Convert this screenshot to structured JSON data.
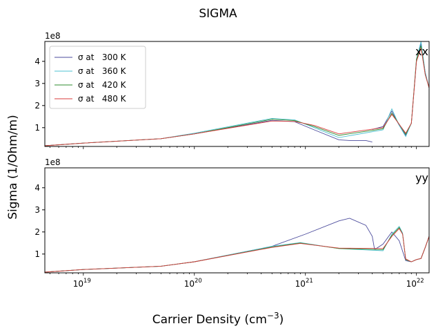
{
  "figure": {
    "title": "SIGMA",
    "xlabel": "Carrier Density (cm",
    "xlabel_sup": "−3",
    "xlabel_close": ")",
    "ylabel": "Sigma (1/Ohm/m)"
  },
  "chart_data": [
    {
      "type": "line",
      "panel": "xx",
      "corner_label": "xx",
      "offset_text": "1e8",
      "x_scale": "log",
      "xlim": [
        4.5e+18,
        1.3e+22
      ],
      "ylim": [
        0.15,
        4.9
      ],
      "yticks": [
        1,
        2,
        3,
        4
      ],
      "ytick_labels": [
        "1",
        "2",
        "3",
        "4"
      ],
      "legend": {
        "placement": "top-left"
      },
      "series": [
        {
          "name": "σ at   300 K",
          "color": "#4b4b9c",
          "x": [
            4.5e+18,
            1e+19,
            5e+19,
            1e+20,
            5e+20,
            8e+20,
            1.2e+21,
            2e+21,
            2.5e+21,
            3.5e+21,
            4e+21
          ],
          "y": [
            0.18,
            0.3,
            0.5,
            0.72,
            1.33,
            1.27,
            0.9,
            0.45,
            0.42,
            0.42,
            0.35
          ]
        },
        {
          "name": "σ at   300 K",
          "color": "#4b4b9c",
          "x": [
            4e+21,
            5e+21,
            6e+21,
            7e+21,
            8e+21,
            9e+21,
            1e+22,
            1.1e+22,
            1.2e+22,
            1.3e+22
          ],
          "y": [
            0.92,
            1.05,
            1.75,
            1.1,
            0.65,
            1.2,
            4.0,
            4.8,
            3.5,
            2.8
          ]
        },
        {
          "name": "σ at   360 K",
          "color": "#4ec0d0",
          "x": [
            4.5e+18,
            1e+19,
            5e+19,
            1e+20,
            5e+20,
            8e+20,
            1.2e+21,
            2e+21,
            5e+21,
            6e+21,
            7e+21,
            8e+21,
            9e+21,
            1e+22,
            1.1e+22,
            1.2e+22,
            1.3e+22
          ],
          "y": [
            0.18,
            0.3,
            0.5,
            0.75,
            1.42,
            1.35,
            1.0,
            0.55,
            0.9,
            1.85,
            1.1,
            0.6,
            1.2,
            4.1,
            4.9,
            3.5,
            2.8
          ]
        },
        {
          "name": "σ at   420 K",
          "color": "#2e8b2e",
          "x": [
            4.5e+18,
            1e+19,
            5e+19,
            1e+20,
            5e+20,
            8e+20,
            1.2e+21,
            2e+21,
            5e+21,
            6e+21,
            7e+21,
            8e+21,
            9e+21,
            1e+22,
            1.1e+22,
            1.2e+22,
            1.3e+22
          ],
          "y": [
            0.18,
            0.3,
            0.5,
            0.72,
            1.38,
            1.32,
            1.05,
            0.65,
            0.95,
            1.65,
            1.15,
            0.7,
            1.2,
            4.1,
            4.7,
            3.4,
            2.8
          ]
        },
        {
          "name": "σ at   480 K",
          "color": "#d83a3a",
          "x": [
            4.5e+18,
            1e+19,
            5e+19,
            1e+20,
            5e+20,
            8e+20,
            1.2e+21,
            2e+21,
            5e+21,
            6e+21,
            7e+21,
            8e+21,
            9e+21,
            1e+22,
            1.1e+22,
            1.2e+22,
            1.3e+22
          ],
          "y": [
            0.18,
            0.3,
            0.5,
            0.72,
            1.3,
            1.28,
            1.1,
            0.72,
            1.0,
            1.6,
            1.15,
            0.75,
            1.2,
            4.0,
            4.6,
            3.4,
            2.8
          ]
        }
      ]
    },
    {
      "type": "line",
      "panel": "yy",
      "corner_label": "yy",
      "offset_text": "1e8",
      "x_scale": "log",
      "xlim": [
        4.5e+18,
        1.3e+22
      ],
      "ylim": [
        0.15,
        4.9
      ],
      "xticks": [
        1e+19,
        1e+20,
        1e+21,
        1e+22
      ],
      "xtick_labels": [
        "10",
        "10",
        "10",
        "10"
      ],
      "xtick_exponents": [
        "19",
        "20",
        "21",
        "22"
      ],
      "yticks": [
        1,
        2,
        3,
        4
      ],
      "ytick_labels": [
        "1",
        "2",
        "3",
        "4"
      ],
      "series": [
        {
          "name": "σ at   300 K",
          "color": "#4b4b9c",
          "x": [
            4.5e+18,
            1e+19,
            5e+19,
            1e+20,
            5e+20,
            1e+21,
            2e+21,
            2.5e+21,
            3.5e+21,
            4e+21,
            4.2e+21
          ],
          "y": [
            0.18,
            0.3,
            0.45,
            0.65,
            1.35,
            1.9,
            2.5,
            2.62,
            2.3,
            1.8,
            1.2
          ]
        },
        {
          "name": "σ at   300 K",
          "color": "#4b4b9c",
          "x": [
            4.2e+21,
            5e+21,
            6e+21,
            7e+21,
            8e+21,
            9e+21,
            1e+22,
            1.1e+22,
            1.2e+22,
            1.3e+22
          ],
          "y": [
            1.2,
            1.45,
            2.0,
            1.6,
            0.7,
            0.65,
            0.75,
            0.8,
            1.3,
            1.8
          ]
        },
        {
          "name": "σ at   360 K",
          "color": "#4ec0d0",
          "x": [
            4.5e+18,
            1e+19,
            5e+19,
            1e+20,
            5e+20,
            9e+20,
            2e+21,
            5e+21,
            6e+21,
            7e+21,
            7.5e+21,
            8e+21,
            9e+21,
            1e+22,
            1.1e+22,
            1.2e+22,
            1.3e+22
          ],
          "y": [
            0.18,
            0.3,
            0.45,
            0.65,
            1.35,
            1.52,
            1.25,
            1.15,
            1.9,
            2.25,
            1.95,
            0.75,
            0.65,
            0.75,
            0.8,
            1.3,
            1.8
          ]
        },
        {
          "name": "σ at   420 K",
          "color": "#2e8b2e",
          "x": [
            4.5e+18,
            1e+19,
            5e+19,
            1e+20,
            5e+20,
            9e+20,
            2e+21,
            5e+21,
            6e+21,
            7e+21,
            7.5e+21,
            8e+21,
            9e+21,
            1e+22,
            1.1e+22,
            1.2e+22,
            1.3e+22
          ],
          "y": [
            0.18,
            0.3,
            0.45,
            0.65,
            1.32,
            1.5,
            1.25,
            1.2,
            1.85,
            2.2,
            1.9,
            0.75,
            0.65,
            0.75,
            0.8,
            1.3,
            1.8
          ]
        },
        {
          "name": "σ at   480 K",
          "color": "#d83a3a",
          "x": [
            4.5e+18,
            1e+19,
            5e+19,
            1e+20,
            5e+20,
            9e+20,
            2e+21,
            5e+21,
            6e+21,
            7e+21,
            7.5e+21,
            8e+21,
            9e+21,
            1e+22,
            1.1e+22,
            1.2e+22,
            1.3e+22
          ],
          "y": [
            0.18,
            0.3,
            0.45,
            0.65,
            1.3,
            1.48,
            1.27,
            1.25,
            1.8,
            2.15,
            1.9,
            0.78,
            0.65,
            0.75,
            0.8,
            1.3,
            1.8
          ]
        }
      ]
    }
  ]
}
